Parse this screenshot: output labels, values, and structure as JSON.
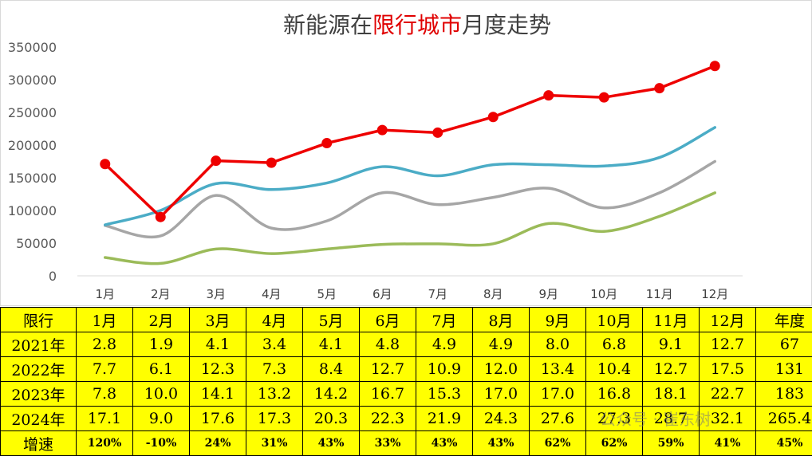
{
  "chart_data": {
    "type": "line",
    "title_parts": [
      "新能源在",
      "限行城市",
      "月度走势"
    ],
    "title_highlight_color": "#e00000",
    "categories": [
      "1月",
      "2月",
      "3月",
      "4月",
      "5月",
      "6月",
      "7月",
      "8月",
      "9月",
      "10月",
      "11月",
      "12月"
    ],
    "ylim": [
      0,
      350000
    ],
    "yticks": [
      0,
      50000,
      100000,
      150000,
      200000,
      250000,
      300000,
      350000
    ],
    "grid": false,
    "series": [
      {
        "key": "2021",
        "color": "#9bbb59",
        "smooth": true,
        "markers": false,
        "values": [
          28000,
          19000,
          41000,
          34000,
          41000,
          48000,
          49000,
          49000,
          80000,
          68000,
          91000,
          127000
        ]
      },
      {
        "key": "2022",
        "color": "#a6a6a6",
        "smooth": true,
        "markers": false,
        "values": [
          77000,
          61000,
          123000,
          73000,
          84000,
          127000,
          109000,
          120000,
          134000,
          104000,
          127000,
          175000
        ]
      },
      {
        "key": "2023",
        "color": "#4bacc6",
        "smooth": true,
        "markers": false,
        "values": [
          78000,
          100000,
          141000,
          132000,
          142000,
          167000,
          153000,
          170000,
          170000,
          168000,
          181000,
          227000
        ]
      },
      {
        "key": "2024",
        "color": "#ee0000",
        "smooth": false,
        "markers": true,
        "values": [
          171000,
          90000,
          176000,
          173000,
          203000,
          223000,
          219000,
          243000,
          276000,
          273000,
          287000,
          321000
        ]
      }
    ]
  },
  "table": {
    "header": [
      "限行",
      "1月",
      "2月",
      "3月",
      "4月",
      "5月",
      "6月",
      "7月",
      "8月",
      "9月",
      "10月",
      "11月",
      "12月",
      "年度"
    ],
    "rows": [
      [
        "2021年",
        "2.8",
        "1.9",
        "4.1",
        "3.4",
        "4.1",
        "4.8",
        "4.9",
        "4.9",
        "8.0",
        "6.8",
        "9.1",
        "12.7",
        "67"
      ],
      [
        "2022年",
        "7.7",
        "6.1",
        "12.3",
        "7.3",
        "8.4",
        "12.7",
        "10.9",
        "12.0",
        "13.4",
        "10.4",
        "12.7",
        "17.5",
        "131"
      ],
      [
        "2023年",
        "7.8",
        "10.0",
        "14.1",
        "13.2",
        "14.2",
        "16.7",
        "15.3",
        "17.0",
        "17.0",
        "16.8",
        "18.1",
        "22.7",
        "183"
      ],
      [
        "2024年",
        "17.1",
        "9.0",
        "17.6",
        "17.3",
        "20.3",
        "22.3",
        "21.9",
        "24.3",
        "27.6",
        "27.3",
        "28.7",
        "32.1",
        "265.4"
      ],
      [
        "增速",
        "120%",
        "-10%",
        "24%",
        "31%",
        "43%",
        "33%",
        "43%",
        "43%",
        "62%",
        "62%",
        "59%",
        "41%",
        "45%"
      ]
    ],
    "background": "#ffff00"
  },
  "watermark": "公众号 · 崔东树"
}
